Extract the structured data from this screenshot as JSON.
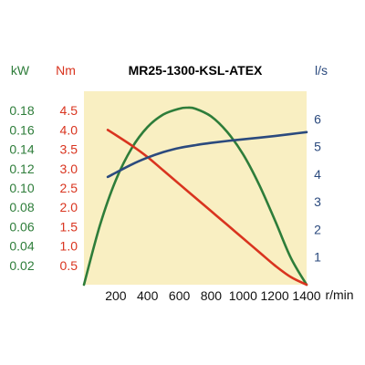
{
  "chart_data": {
    "type": "line",
    "title": "MR25-1300-KSL-ATEX",
    "xlabel": "r/min",
    "x_ticks": [
      "200",
      "400",
      "600",
      "800",
      "1000",
      "1200",
      "1400"
    ],
    "xlim": [
      0,
      1400
    ],
    "axes": {
      "power": {
        "label": "kW",
        "color": "#2e7d3a",
        "ylim": [
          0,
          0.2
        ],
        "ticks": [
          "0.02",
          "0.04",
          "0.06",
          "0.08",
          "0.10",
          "0.12",
          "0.14",
          "0.16",
          "0.18"
        ]
      },
      "torque": {
        "label": "Nm",
        "color": "#d9341f",
        "ylim": [
          0,
          5
        ],
        "ticks": [
          "0.5",
          "1.0",
          "1.5",
          "2.0",
          "2.5",
          "3.0",
          "3.5",
          "4.0",
          "4.5"
        ]
      },
      "flow": {
        "label": "l/s",
        "color": "#2b4a7e",
        "ylim": [
          0,
          7
        ],
        "ticks": [
          "1",
          "2",
          "3",
          "4",
          "5",
          "6"
        ]
      }
    },
    "series": [
      {
        "axis": "power",
        "color": "#2e7d3a",
        "x": [
          0,
          100,
          200,
          300,
          400,
          500,
          600,
          650,
          700,
          800,
          900,
          1000,
          1100,
          1200,
          1300,
          1400
        ],
        "y": [
          0,
          0.061,
          0.108,
          0.141,
          0.163,
          0.176,
          0.182,
          0.183,
          0.182,
          0.174,
          0.158,
          0.135,
          0.104,
          0.067,
          0.028,
          0
        ]
      },
      {
        "axis": "torque",
        "color": "#d9341f",
        "x": [
          150,
          300,
          400,
          500,
          600,
          700,
          800,
          900,
          1000,
          1100,
          1200,
          1300,
          1400
        ],
        "y": [
          4.0,
          3.6,
          3.3,
          2.95,
          2.6,
          2.25,
          1.9,
          1.55,
          1.2,
          0.85,
          0.5,
          0.2,
          0.0
        ]
      },
      {
        "axis": "flow",
        "color": "#2b4a7e",
        "x": [
          150,
          300,
          400,
          500,
          600,
          700,
          800,
          900,
          1000,
          1100,
          1200,
          1300,
          1400
        ],
        "y": [
          3.9,
          4.35,
          4.6,
          4.8,
          4.95,
          5.05,
          5.13,
          5.2,
          5.26,
          5.32,
          5.38,
          5.45,
          5.52
        ]
      }
    ],
    "grid": false,
    "background": "#f9efc2"
  }
}
